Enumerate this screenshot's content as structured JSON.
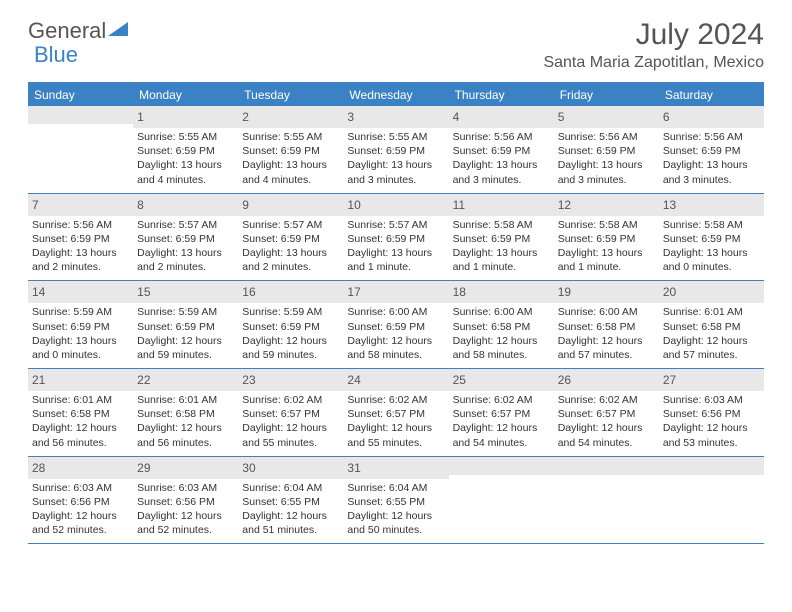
{
  "logo": {
    "text1": "General",
    "text2": "Blue"
  },
  "title": "July 2024",
  "location": "Santa Maria Zapotitlan, Mexico",
  "colors": {
    "accent": "#3b82c4",
    "header_bg": "#3b82c4",
    "daynum_bg": "#e8e8e8",
    "text": "#555"
  },
  "dow": [
    "Sunday",
    "Monday",
    "Tuesday",
    "Wednesday",
    "Thursday",
    "Friday",
    "Saturday"
  ],
  "weeks": [
    [
      {
        "n": "",
        "sr": "",
        "ss": "",
        "dl": ""
      },
      {
        "n": "1",
        "sr": "Sunrise: 5:55 AM",
        "ss": "Sunset: 6:59 PM",
        "dl": "Daylight: 13 hours and 4 minutes."
      },
      {
        "n": "2",
        "sr": "Sunrise: 5:55 AM",
        "ss": "Sunset: 6:59 PM",
        "dl": "Daylight: 13 hours and 4 minutes."
      },
      {
        "n": "3",
        "sr": "Sunrise: 5:55 AM",
        "ss": "Sunset: 6:59 PM",
        "dl": "Daylight: 13 hours and 3 minutes."
      },
      {
        "n": "4",
        "sr": "Sunrise: 5:56 AM",
        "ss": "Sunset: 6:59 PM",
        "dl": "Daylight: 13 hours and 3 minutes."
      },
      {
        "n": "5",
        "sr": "Sunrise: 5:56 AM",
        "ss": "Sunset: 6:59 PM",
        "dl": "Daylight: 13 hours and 3 minutes."
      },
      {
        "n": "6",
        "sr": "Sunrise: 5:56 AM",
        "ss": "Sunset: 6:59 PM",
        "dl": "Daylight: 13 hours and 3 minutes."
      }
    ],
    [
      {
        "n": "7",
        "sr": "Sunrise: 5:56 AM",
        "ss": "Sunset: 6:59 PM",
        "dl": "Daylight: 13 hours and 2 minutes."
      },
      {
        "n": "8",
        "sr": "Sunrise: 5:57 AM",
        "ss": "Sunset: 6:59 PM",
        "dl": "Daylight: 13 hours and 2 minutes."
      },
      {
        "n": "9",
        "sr": "Sunrise: 5:57 AM",
        "ss": "Sunset: 6:59 PM",
        "dl": "Daylight: 13 hours and 2 minutes."
      },
      {
        "n": "10",
        "sr": "Sunrise: 5:57 AM",
        "ss": "Sunset: 6:59 PM",
        "dl": "Daylight: 13 hours and 1 minute."
      },
      {
        "n": "11",
        "sr": "Sunrise: 5:58 AM",
        "ss": "Sunset: 6:59 PM",
        "dl": "Daylight: 13 hours and 1 minute."
      },
      {
        "n": "12",
        "sr": "Sunrise: 5:58 AM",
        "ss": "Sunset: 6:59 PM",
        "dl": "Daylight: 13 hours and 1 minute."
      },
      {
        "n": "13",
        "sr": "Sunrise: 5:58 AM",
        "ss": "Sunset: 6:59 PM",
        "dl": "Daylight: 13 hours and 0 minutes."
      }
    ],
    [
      {
        "n": "14",
        "sr": "Sunrise: 5:59 AM",
        "ss": "Sunset: 6:59 PM",
        "dl": "Daylight: 13 hours and 0 minutes."
      },
      {
        "n": "15",
        "sr": "Sunrise: 5:59 AM",
        "ss": "Sunset: 6:59 PM",
        "dl": "Daylight: 12 hours and 59 minutes."
      },
      {
        "n": "16",
        "sr": "Sunrise: 5:59 AM",
        "ss": "Sunset: 6:59 PM",
        "dl": "Daylight: 12 hours and 59 minutes."
      },
      {
        "n": "17",
        "sr": "Sunrise: 6:00 AM",
        "ss": "Sunset: 6:59 PM",
        "dl": "Daylight: 12 hours and 58 minutes."
      },
      {
        "n": "18",
        "sr": "Sunrise: 6:00 AM",
        "ss": "Sunset: 6:58 PM",
        "dl": "Daylight: 12 hours and 58 minutes."
      },
      {
        "n": "19",
        "sr": "Sunrise: 6:00 AM",
        "ss": "Sunset: 6:58 PM",
        "dl": "Daylight: 12 hours and 57 minutes."
      },
      {
        "n": "20",
        "sr": "Sunrise: 6:01 AM",
        "ss": "Sunset: 6:58 PM",
        "dl": "Daylight: 12 hours and 57 minutes."
      }
    ],
    [
      {
        "n": "21",
        "sr": "Sunrise: 6:01 AM",
        "ss": "Sunset: 6:58 PM",
        "dl": "Daylight: 12 hours and 56 minutes."
      },
      {
        "n": "22",
        "sr": "Sunrise: 6:01 AM",
        "ss": "Sunset: 6:58 PM",
        "dl": "Daylight: 12 hours and 56 minutes."
      },
      {
        "n": "23",
        "sr": "Sunrise: 6:02 AM",
        "ss": "Sunset: 6:57 PM",
        "dl": "Daylight: 12 hours and 55 minutes."
      },
      {
        "n": "24",
        "sr": "Sunrise: 6:02 AM",
        "ss": "Sunset: 6:57 PM",
        "dl": "Daylight: 12 hours and 55 minutes."
      },
      {
        "n": "25",
        "sr": "Sunrise: 6:02 AM",
        "ss": "Sunset: 6:57 PM",
        "dl": "Daylight: 12 hours and 54 minutes."
      },
      {
        "n": "26",
        "sr": "Sunrise: 6:02 AM",
        "ss": "Sunset: 6:57 PM",
        "dl": "Daylight: 12 hours and 54 minutes."
      },
      {
        "n": "27",
        "sr": "Sunrise: 6:03 AM",
        "ss": "Sunset: 6:56 PM",
        "dl": "Daylight: 12 hours and 53 minutes."
      }
    ],
    [
      {
        "n": "28",
        "sr": "Sunrise: 6:03 AM",
        "ss": "Sunset: 6:56 PM",
        "dl": "Daylight: 12 hours and 52 minutes."
      },
      {
        "n": "29",
        "sr": "Sunrise: 6:03 AM",
        "ss": "Sunset: 6:56 PM",
        "dl": "Daylight: 12 hours and 52 minutes."
      },
      {
        "n": "30",
        "sr": "Sunrise: 6:04 AM",
        "ss": "Sunset: 6:55 PM",
        "dl": "Daylight: 12 hours and 51 minutes."
      },
      {
        "n": "31",
        "sr": "Sunrise: 6:04 AM",
        "ss": "Sunset: 6:55 PM",
        "dl": "Daylight: 12 hours and 50 minutes."
      },
      {
        "n": "",
        "sr": "",
        "ss": "",
        "dl": ""
      },
      {
        "n": "",
        "sr": "",
        "ss": "",
        "dl": ""
      },
      {
        "n": "",
        "sr": "",
        "ss": "",
        "dl": ""
      }
    ]
  ]
}
